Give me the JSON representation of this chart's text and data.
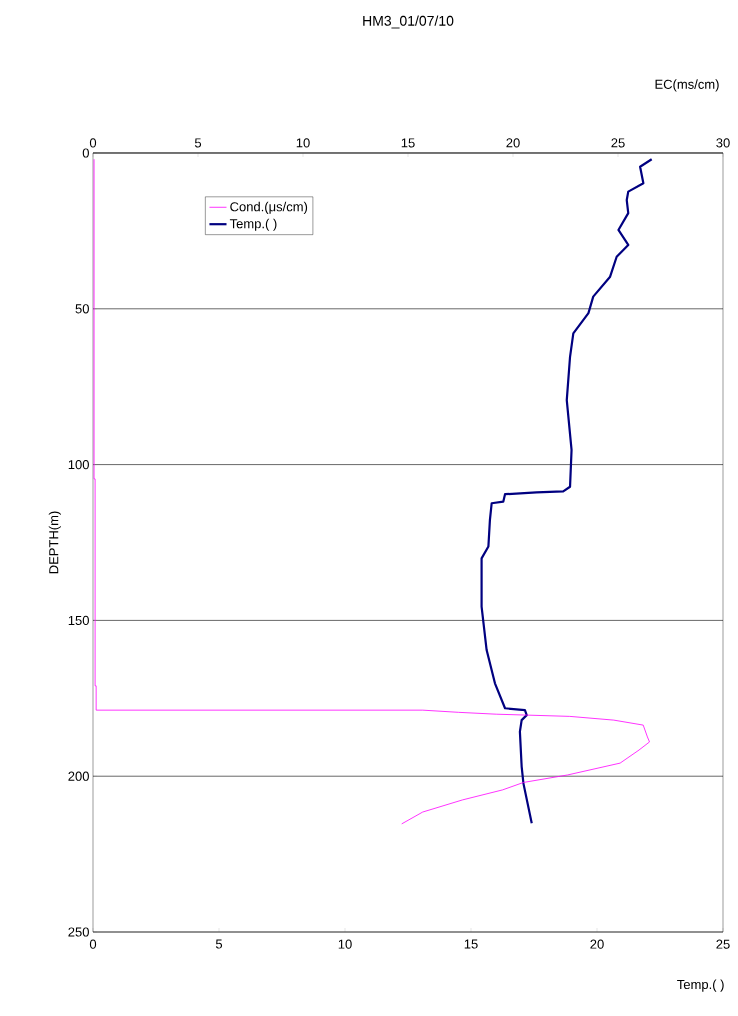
{
  "chart_data": {
    "type": "line",
    "title": "HM3_01/07/10",
    "xlabel": "Temp.(   )",
    "x2label": "EC(ms/cm)",
    "ylabel": "DEPTH(m)",
    "xlim": [
      0,
      25
    ],
    "xticks": [
      0,
      5,
      10,
      15,
      20,
      25
    ],
    "x2lim": [
      0,
      30
    ],
    "x2ticks": [
      0,
      5,
      10,
      15,
      20,
      25,
      30
    ],
    "ylim": [
      250,
      0
    ],
    "yticks": [
      0,
      50,
      100,
      150,
      200,
      250
    ],
    "grid": "y",
    "legend": "top left",
    "marker": "none",
    "line_style": "solid",
    "series": [
      {
        "name": "Cond.(μs/cm)",
        "color": "#ff00ff",
        "axis": "x2",
        "x": [
          0.05,
          0.05,
          0.1,
          0.1,
          0.15,
          0.15,
          15.7,
          17.4,
          19.2,
          22.7,
          24.8,
          26.2,
          26.4,
          26.5,
          26.0,
          25.1,
          22.6,
          20.5,
          19.5,
          17.6,
          15.7,
          14.7
        ],
        "values": [
          2,
          104.6,
          104.6,
          171,
          171,
          178.8,
          178.8,
          179.5,
          180.1,
          180.8,
          182,
          183.6,
          187.4,
          189,
          191.6,
          195.8,
          199.6,
          202,
          204.4,
          207.6,
          211.5,
          215.3
        ]
      },
      {
        "name": "Temp.(   )",
        "color": "#000080",
        "x": [
          22.17,
          21.71,
          21.84,
          21.24,
          21.18,
          21.24,
          20.85,
          21.24,
          20.78,
          20.52,
          19.85,
          19.66,
          19.06,
          18.93,
          18.8,
          18.99,
          18.93,
          18.66,
          17.6,
          16.35,
          16.28,
          15.82,
          15.75,
          15.69,
          15.42,
          15.42,
          15.62,
          15.95,
          16.35,
          17.14,
          17.21,
          17.01,
          16.94,
          17.01,
          17.08,
          17.41
        ],
        "values": [
          2.0,
          4.4,
          9.7,
          12.4,
          15.1,
          19.3,
          24.7,
          29.5,
          33.3,
          39.7,
          46.1,
          51.4,
          57.9,
          65.4,
          79.3,
          95.3,
          107.1,
          108.6,
          108.9,
          109.5,
          111.9,
          112.4,
          117.8,
          126.3,
          130.1,
          145.6,
          159.5,
          170.2,
          178.2,
          178.8,
          180.4,
          182.0,
          185.7,
          196.9,
          202.3,
          215.1
        ]
      }
    ]
  }
}
